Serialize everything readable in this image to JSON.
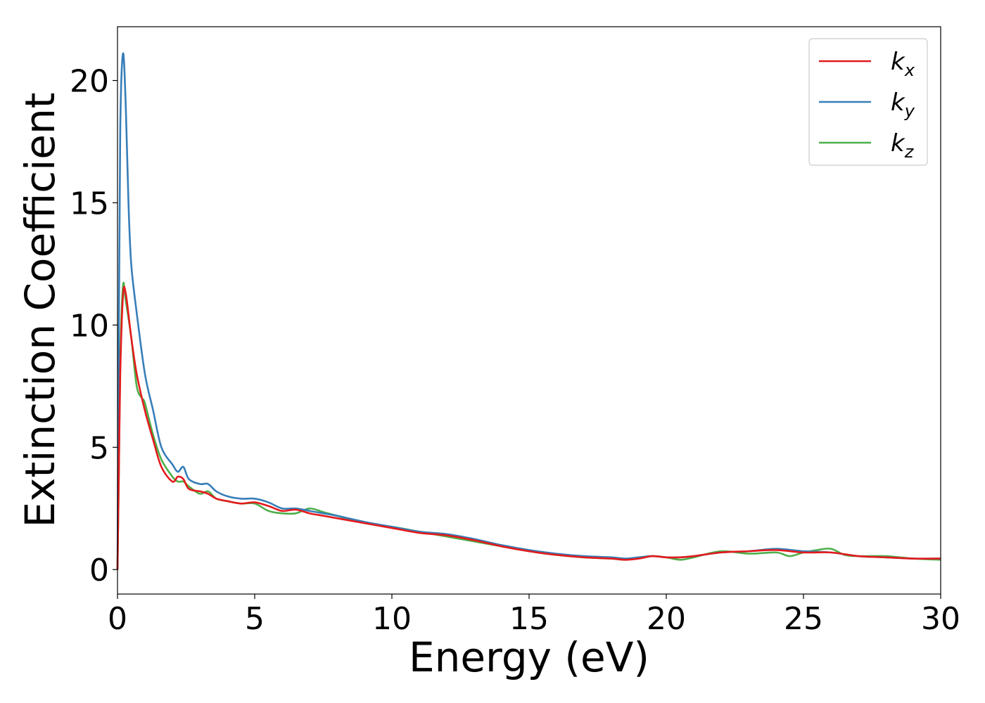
{
  "chart_data": {
    "type": "line",
    "title": "",
    "xlabel": "Energy (eV)",
    "ylabel": "Extinction Coefficient",
    "xlim": [
      0,
      30
    ],
    "ylim": [
      -1,
      22.2
    ],
    "xticks": [
      0,
      5,
      10,
      15,
      20,
      25,
      30
    ],
    "yticks": [
      0,
      5,
      10,
      15,
      20
    ],
    "grid": false,
    "legend_position": "top-right",
    "series": [
      {
        "name": "k_x",
        "label_main": "k",
        "label_sub": "x",
        "color": "#e41a1c",
        "x": [
          0,
          0.05,
          0.1,
          0.2,
          0.3,
          0.5,
          0.7,
          1.0,
          1.3,
          1.6,
          2.0,
          2.2,
          2.4,
          2.6,
          3.0,
          3.3,
          3.6,
          4.0,
          4.5,
          5.0,
          5.5,
          6.0,
          6.5,
          7.0,
          7.5,
          8.0,
          9.0,
          10.0,
          11.0,
          12.0,
          13.0,
          14.0,
          15.0,
          16.0,
          17.0,
          18.0,
          18.5,
          19.0,
          19.5,
          20.0,
          20.5,
          21.0,
          22.0,
          23.0,
          24.0,
          25.0,
          26.0,
          27.0,
          28.0,
          29.0,
          30.0
        ],
        "y": [
          0,
          4.0,
          8.0,
          11.2,
          11.3,
          9.5,
          8.0,
          6.5,
          5.3,
          4.2,
          3.6,
          3.8,
          3.7,
          3.3,
          3.2,
          3.1,
          2.9,
          2.8,
          2.7,
          2.75,
          2.6,
          2.4,
          2.45,
          2.3,
          2.2,
          2.1,
          1.9,
          1.7,
          1.5,
          1.4,
          1.2,
          0.95,
          0.75,
          0.6,
          0.5,
          0.45,
          0.4,
          0.45,
          0.55,
          0.5,
          0.5,
          0.55,
          0.7,
          0.75,
          0.8,
          0.7,
          0.7,
          0.55,
          0.5,
          0.45,
          0.45
        ]
      },
      {
        "name": "k_y",
        "label_main": "k",
        "label_sub": "y",
        "color": "#377eb8",
        "x": [
          0,
          0.05,
          0.1,
          0.2,
          0.3,
          0.4,
          0.5,
          0.7,
          1.0,
          1.3,
          1.6,
          2.0,
          2.2,
          2.4,
          2.6,
          3.0,
          3.3,
          3.6,
          4.0,
          4.5,
          5.0,
          5.5,
          6.0,
          6.5,
          7.0,
          7.5,
          8.0,
          9.0,
          10.0,
          11.0,
          12.0,
          13.0,
          14.0,
          15.0,
          16.0,
          17.0,
          18.0,
          18.5,
          19.0,
          19.5,
          20.0,
          20.5,
          21.0,
          22.0,
          23.0,
          24.0,
          25.0,
          26.0,
          27.0,
          28.0,
          29.0,
          30.0
        ],
        "y": [
          0,
          10.0,
          18.0,
          21.1,
          19.0,
          15.0,
          12.5,
          10.5,
          8.0,
          6.5,
          5.0,
          4.3,
          4.0,
          4.2,
          3.7,
          3.5,
          3.5,
          3.2,
          3.0,
          2.9,
          2.9,
          2.75,
          2.5,
          2.5,
          2.4,
          2.3,
          2.2,
          1.95,
          1.75,
          1.55,
          1.45,
          1.25,
          1.0,
          0.8,
          0.65,
          0.55,
          0.5,
          0.45,
          0.5,
          0.55,
          0.5,
          0.5,
          0.55,
          0.7,
          0.75,
          0.85,
          0.75,
          0.7,
          0.55,
          0.5,
          0.45,
          0.45
        ]
      },
      {
        "name": "k_z",
        "label_main": "k",
        "label_sub": "z",
        "color": "#4daf4a",
        "x": [
          0,
          0.05,
          0.1,
          0.2,
          0.3,
          0.5,
          0.7,
          0.9,
          1.0,
          1.3,
          1.6,
          2.0,
          2.2,
          2.4,
          2.6,
          3.0,
          3.3,
          3.6,
          4.0,
          4.5,
          5.0,
          5.5,
          6.0,
          6.5,
          7.0,
          7.5,
          8.0,
          9.0,
          10.0,
          11.0,
          12.0,
          13.0,
          14.0,
          15.0,
          16.0,
          17.0,
          18.0,
          18.5,
          19.0,
          19.5,
          20.0,
          20.5,
          21.0,
          22.0,
          23.0,
          24.0,
          24.5,
          25.0,
          25.5,
          26.0,
          26.5,
          27.0,
          28.0,
          29.0,
          30.0
        ],
        "y": [
          0,
          4.0,
          8.5,
          11.6,
          11.0,
          9.5,
          7.5,
          7.0,
          6.8,
          5.5,
          4.5,
          3.8,
          3.6,
          3.6,
          3.4,
          3.1,
          3.2,
          2.9,
          2.8,
          2.7,
          2.7,
          2.4,
          2.3,
          2.3,
          2.5,
          2.35,
          2.2,
          1.9,
          1.75,
          1.55,
          1.35,
          1.15,
          0.95,
          0.75,
          0.6,
          0.5,
          0.45,
          0.4,
          0.5,
          0.55,
          0.5,
          0.4,
          0.5,
          0.75,
          0.65,
          0.7,
          0.55,
          0.7,
          0.8,
          0.85,
          0.6,
          0.55,
          0.55,
          0.45,
          0.4
        ]
      }
    ]
  }
}
